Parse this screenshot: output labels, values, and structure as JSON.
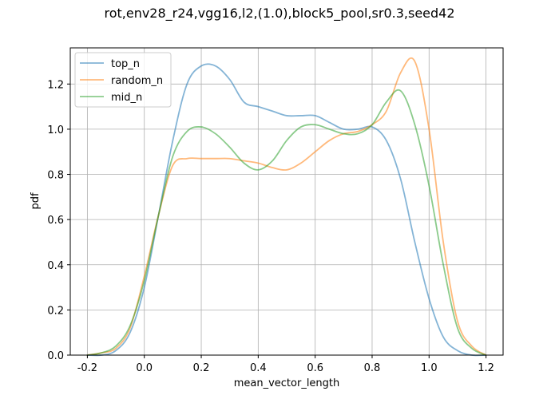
{
  "chart_data": {
    "type": "line",
    "title": "rot,env28_r24,vgg16,l2,(1.0),block5_pool,sr0.3,seed42",
    "xlabel": "mean_vector_length",
    "ylabel": "pdf",
    "xlim": [
      -0.26,
      1.26
    ],
    "ylim": [
      0,
      1.36
    ],
    "xticks": [
      -0.2,
      0.0,
      0.2,
      0.4,
      0.6,
      0.8,
      1.0,
      1.2
    ],
    "xtick_labels": [
      "-0.2",
      "0.0",
      "0.2",
      "0.4",
      "0.6",
      "0.8",
      "1.0",
      "1.2"
    ],
    "yticks": [
      0.0,
      0.2,
      0.4,
      0.6,
      0.8,
      1.0,
      1.2
    ],
    "ytick_labels": [
      "0.0",
      "0.2",
      "0.4",
      "0.6",
      "0.8",
      "1.0",
      "1.2"
    ],
    "grid": true,
    "legend_position": "upper-left",
    "series": [
      {
        "name": "top_n",
        "color": "#1f77b4",
        "x": [
          -0.2,
          -0.15,
          -0.1,
          -0.05,
          0.0,
          0.05,
          0.1,
          0.15,
          0.2,
          0.25,
          0.3,
          0.35,
          0.4,
          0.45,
          0.5,
          0.55,
          0.6,
          0.65,
          0.7,
          0.75,
          0.8,
          0.85,
          0.9,
          0.95,
          1.0,
          1.05,
          1.1,
          1.15,
          1.2
        ],
        "y": [
          0.0,
          0.0,
          0.02,
          0.1,
          0.3,
          0.62,
          0.95,
          1.2,
          1.28,
          1.28,
          1.22,
          1.12,
          1.1,
          1.08,
          1.06,
          1.06,
          1.06,
          1.03,
          1.0,
          1.0,
          1.01,
          0.95,
          0.78,
          0.5,
          0.25,
          0.08,
          0.02,
          0.0,
          0.0
        ]
      },
      {
        "name": "random_n",
        "color": "#ff7f0e",
        "x": [
          -0.2,
          -0.15,
          -0.1,
          -0.05,
          0.0,
          0.05,
          0.1,
          0.15,
          0.2,
          0.25,
          0.3,
          0.35,
          0.4,
          0.45,
          0.5,
          0.55,
          0.6,
          0.65,
          0.7,
          0.75,
          0.8,
          0.85,
          0.9,
          0.95,
          1.0,
          1.05,
          1.1,
          1.15,
          1.2
        ],
        "y": [
          0.0,
          0.01,
          0.03,
          0.12,
          0.35,
          0.62,
          0.84,
          0.87,
          0.87,
          0.87,
          0.87,
          0.86,
          0.85,
          0.83,
          0.82,
          0.85,
          0.9,
          0.95,
          0.98,
          0.99,
          1.02,
          1.08,
          1.25,
          1.3,
          1.0,
          0.5,
          0.15,
          0.04,
          0.0
        ]
      },
      {
        "name": "mid_n",
        "color": "#2ca02c",
        "x": [
          -0.2,
          -0.15,
          -0.1,
          -0.05,
          0.0,
          0.05,
          0.1,
          0.15,
          0.2,
          0.25,
          0.3,
          0.35,
          0.4,
          0.45,
          0.5,
          0.55,
          0.6,
          0.65,
          0.7,
          0.75,
          0.8,
          0.85,
          0.9,
          0.95,
          1.0,
          1.05,
          1.1,
          1.15,
          1.2
        ],
        "y": [
          0.0,
          0.01,
          0.04,
          0.13,
          0.33,
          0.62,
          0.88,
          0.99,
          1.01,
          0.98,
          0.92,
          0.85,
          0.82,
          0.86,
          0.95,
          1.01,
          1.02,
          1.0,
          0.98,
          0.98,
          1.02,
          1.12,
          1.17,
          1.02,
          0.75,
          0.4,
          0.12,
          0.03,
          0.0
        ]
      }
    ]
  }
}
